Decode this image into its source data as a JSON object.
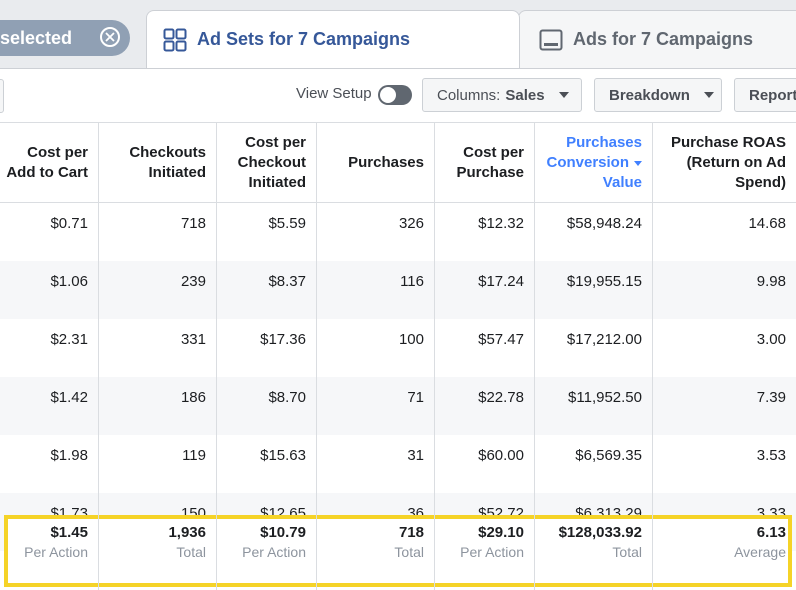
{
  "selection": {
    "label": "selected"
  },
  "tabs": [
    {
      "label": "Ad Sets for 7 Campaigns",
      "icon": "ad-sets-grid-icon",
      "active": true
    },
    {
      "label": "Ads for 7 Campaigns",
      "icon": "ads-monitor-icon",
      "active": false
    }
  ],
  "toolbar": {
    "view_setup": "View Setup",
    "columns_prefix": "Columns:",
    "columns_value": "Sales",
    "breakdown": "Breakdown",
    "report": "Report"
  },
  "columns": [
    {
      "key": "cost_per_add_to_cart",
      "label": "Cost per\nAdd to Cart"
    },
    {
      "key": "checkouts_initiated",
      "label": "Checkouts\nInitiated"
    },
    {
      "key": "cost_per_checkout",
      "label": "Cost per\nCheckout\nInitiated"
    },
    {
      "key": "purchases",
      "label": "Purchases"
    },
    {
      "key": "cost_per_purchase",
      "label": "Cost per\nPurchase"
    },
    {
      "key": "purchases_conversion_value",
      "label": "Purchases\nConversion\nValue",
      "sorted": true
    },
    {
      "key": "purchase_roas",
      "label": "Purchase ROAS\n(Return on Ad\nSpend)"
    }
  ],
  "rows": [
    [
      "$0.71",
      "718",
      "$5.59",
      "326",
      "$12.32",
      "$58,948.24",
      "14.68"
    ],
    [
      "$1.06",
      "239",
      "$8.37",
      "116",
      "$17.24",
      "$19,955.15",
      "9.98"
    ],
    [
      "$2.31",
      "331",
      "$17.36",
      "100",
      "$57.47",
      "$17,212.00",
      "3.00"
    ],
    [
      "$1.42",
      "186",
      "$8.70",
      "71",
      "$22.78",
      "$11,952.50",
      "7.39"
    ],
    [
      "$1.98",
      "119",
      "$15.63",
      "31",
      "$60.00",
      "$6,569.35",
      "3.53"
    ],
    [
      "$1.73",
      "150",
      "$12.65",
      "36",
      "$52.72",
      "$6,313.29",
      "3.33"
    ]
  ],
  "totals": [
    {
      "value": "$1.45",
      "sub": "Per Action"
    },
    {
      "value": "1,936",
      "sub": "Total"
    },
    {
      "value": "$10.79",
      "sub": "Per Action"
    },
    {
      "value": "718",
      "sub": "Total"
    },
    {
      "value": "$29.10",
      "sub": "Per Action"
    },
    {
      "value": "$128,033.92",
      "sub": "Total"
    },
    {
      "value": "6.13",
      "sub": "Average"
    }
  ],
  "colors": {
    "accent": "#4080ff",
    "tab_text": "#365899",
    "highlight": "#f5d327",
    "pill": "#90a0b4"
  }
}
